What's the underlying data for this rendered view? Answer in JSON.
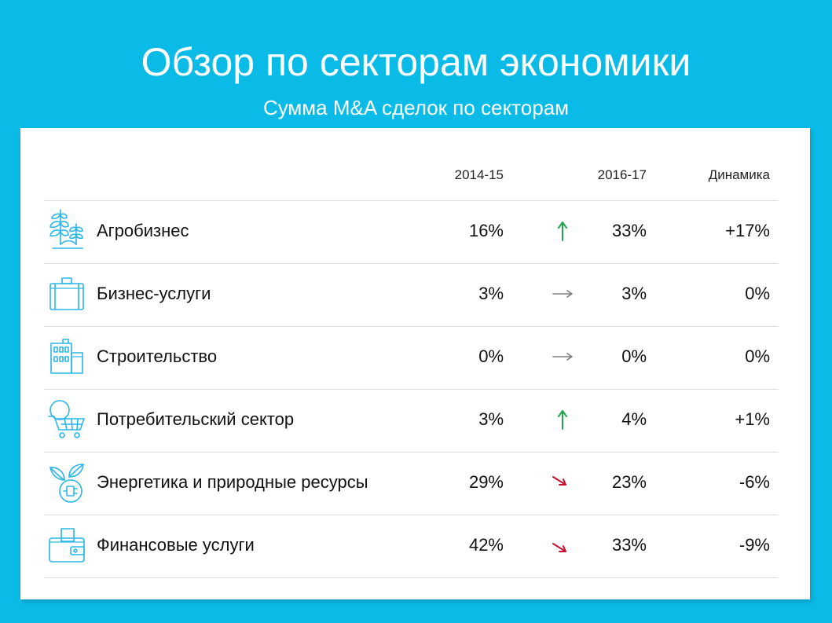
{
  "title": "Обзор по секторам экономики",
  "subtitle": "Сумма M&A сделок по секторам",
  "colors": {
    "background": "#0abbe8",
    "icon": "#29b6e8",
    "arrow_up": "#1fa64a",
    "arrow_flat": "#7a7a7a",
    "arrow_down": "#c8102e"
  },
  "table": {
    "headers": {
      "col_2014": "2014-15",
      "col_2016": "2016-17",
      "col_dynamics": "Динамика"
    },
    "rows": [
      {
        "icon": "wheat-plant-icon",
        "sector": "Агробизнес",
        "v2014": "16%",
        "trend": "up",
        "v2016": "33%",
        "dynamics": "+17%"
      },
      {
        "icon": "briefcase-icon",
        "sector": "Бизнес-услуги",
        "v2014": "3%",
        "trend": "flat",
        "v2016": "3%",
        "dynamics": "0%"
      },
      {
        "icon": "buildings-icon",
        "sector": "Строительство",
        "v2014": "0%",
        "trend": "flat",
        "v2016": "0%",
        "dynamics": "0%"
      },
      {
        "icon": "shopping-cart-icon",
        "sector": "Потребительский сектор",
        "v2014": "3%",
        "trend": "up",
        "v2016": "4%",
        "dynamics": "+1%"
      },
      {
        "icon": "leaf-plug-icon",
        "sector": "Энергетика и природные ресурсы",
        "v2014": "29%",
        "trend": "down",
        "v2016": "23%",
        "dynamics": "-6%"
      },
      {
        "icon": "wallet-icon",
        "sector": "Финансовые услуги",
        "v2014": "42%",
        "trend": "down",
        "v2016": "33%",
        "dynamics": "-9%"
      }
    ]
  }
}
